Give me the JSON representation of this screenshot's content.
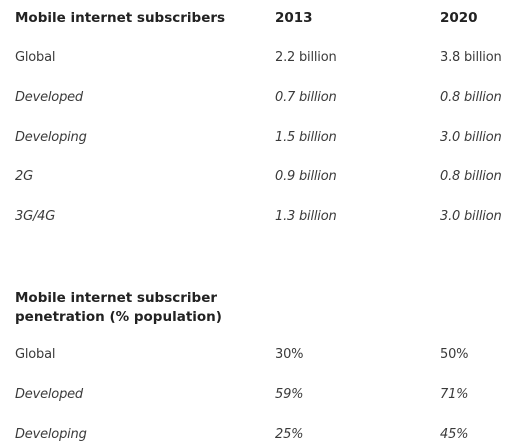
{
  "tables": [
    {
      "header": [
        "Mobile internet subscribers",
        "2013",
        "2020"
      ],
      "rows": [
        [
          "Global",
          "2.2 billion",
          "3.8 billion"
        ],
        [
          "Developed",
          "0.7 billion",
          "0.8 billion"
        ],
        [
          "Developing",
          "1.5 billion",
          "3.0 billion"
        ],
        [
          "2G",
          "0.9 billion",
          "0.8 billion"
        ],
        [
          "3G/4G",
          "1.3 billion",
          "3.0 billion"
        ]
      ]
    },
    {
      "header": [
        "Mobile internet subscriber penetration (% population)"
      ],
      "rows": [
        [
          "Global",
          "30%",
          "50%"
        ],
        [
          "Developed",
          "59%",
          "71%"
        ],
        [
          "Developing",
          "25%",
          "45%"
        ]
      ]
    }
  ]
}
